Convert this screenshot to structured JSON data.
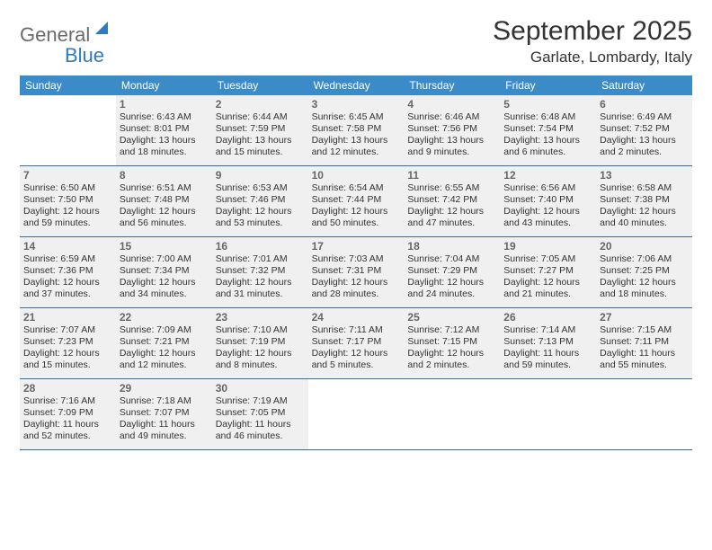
{
  "logo": {
    "word1": "General",
    "word2": "Blue"
  },
  "title": "September 2025",
  "location": "Garlate, Lombardy, Italy",
  "colors": {
    "header_bg": "#3b8bc9",
    "header_text": "#ffffff",
    "cell_bg": "#f0f0f0",
    "row_border": "#2f6fa8",
    "logo_gray": "#6b6b6b",
    "logo_blue": "#2f7bbf"
  },
  "weekdays": [
    "Sunday",
    "Monday",
    "Tuesday",
    "Wednesday",
    "Thursday",
    "Friday",
    "Saturday"
  ],
  "weeks": [
    [
      null,
      {
        "n": "1",
        "sr": "Sunrise: 6:43 AM",
        "ss": "Sunset: 8:01 PM",
        "dl": "Daylight: 13 hours and 18 minutes."
      },
      {
        "n": "2",
        "sr": "Sunrise: 6:44 AM",
        "ss": "Sunset: 7:59 PM",
        "dl": "Daylight: 13 hours and 15 minutes."
      },
      {
        "n": "3",
        "sr": "Sunrise: 6:45 AM",
        "ss": "Sunset: 7:58 PM",
        "dl": "Daylight: 13 hours and 12 minutes."
      },
      {
        "n": "4",
        "sr": "Sunrise: 6:46 AM",
        "ss": "Sunset: 7:56 PM",
        "dl": "Daylight: 13 hours and 9 minutes."
      },
      {
        "n": "5",
        "sr": "Sunrise: 6:48 AM",
        "ss": "Sunset: 7:54 PM",
        "dl": "Daylight: 13 hours and 6 minutes."
      },
      {
        "n": "6",
        "sr": "Sunrise: 6:49 AM",
        "ss": "Sunset: 7:52 PM",
        "dl": "Daylight: 13 hours and 2 minutes."
      }
    ],
    [
      {
        "n": "7",
        "sr": "Sunrise: 6:50 AM",
        "ss": "Sunset: 7:50 PM",
        "dl": "Daylight: 12 hours and 59 minutes."
      },
      {
        "n": "8",
        "sr": "Sunrise: 6:51 AM",
        "ss": "Sunset: 7:48 PM",
        "dl": "Daylight: 12 hours and 56 minutes."
      },
      {
        "n": "9",
        "sr": "Sunrise: 6:53 AM",
        "ss": "Sunset: 7:46 PM",
        "dl": "Daylight: 12 hours and 53 minutes."
      },
      {
        "n": "10",
        "sr": "Sunrise: 6:54 AM",
        "ss": "Sunset: 7:44 PM",
        "dl": "Daylight: 12 hours and 50 minutes."
      },
      {
        "n": "11",
        "sr": "Sunrise: 6:55 AM",
        "ss": "Sunset: 7:42 PM",
        "dl": "Daylight: 12 hours and 47 minutes."
      },
      {
        "n": "12",
        "sr": "Sunrise: 6:56 AM",
        "ss": "Sunset: 7:40 PM",
        "dl": "Daylight: 12 hours and 43 minutes."
      },
      {
        "n": "13",
        "sr": "Sunrise: 6:58 AM",
        "ss": "Sunset: 7:38 PM",
        "dl": "Daylight: 12 hours and 40 minutes."
      }
    ],
    [
      {
        "n": "14",
        "sr": "Sunrise: 6:59 AM",
        "ss": "Sunset: 7:36 PM",
        "dl": "Daylight: 12 hours and 37 minutes."
      },
      {
        "n": "15",
        "sr": "Sunrise: 7:00 AM",
        "ss": "Sunset: 7:34 PM",
        "dl": "Daylight: 12 hours and 34 minutes."
      },
      {
        "n": "16",
        "sr": "Sunrise: 7:01 AM",
        "ss": "Sunset: 7:32 PM",
        "dl": "Daylight: 12 hours and 31 minutes."
      },
      {
        "n": "17",
        "sr": "Sunrise: 7:03 AM",
        "ss": "Sunset: 7:31 PM",
        "dl": "Daylight: 12 hours and 28 minutes."
      },
      {
        "n": "18",
        "sr": "Sunrise: 7:04 AM",
        "ss": "Sunset: 7:29 PM",
        "dl": "Daylight: 12 hours and 24 minutes."
      },
      {
        "n": "19",
        "sr": "Sunrise: 7:05 AM",
        "ss": "Sunset: 7:27 PM",
        "dl": "Daylight: 12 hours and 21 minutes."
      },
      {
        "n": "20",
        "sr": "Sunrise: 7:06 AM",
        "ss": "Sunset: 7:25 PM",
        "dl": "Daylight: 12 hours and 18 minutes."
      }
    ],
    [
      {
        "n": "21",
        "sr": "Sunrise: 7:07 AM",
        "ss": "Sunset: 7:23 PM",
        "dl": "Daylight: 12 hours and 15 minutes."
      },
      {
        "n": "22",
        "sr": "Sunrise: 7:09 AM",
        "ss": "Sunset: 7:21 PM",
        "dl": "Daylight: 12 hours and 12 minutes."
      },
      {
        "n": "23",
        "sr": "Sunrise: 7:10 AM",
        "ss": "Sunset: 7:19 PM",
        "dl": "Daylight: 12 hours and 8 minutes."
      },
      {
        "n": "24",
        "sr": "Sunrise: 7:11 AM",
        "ss": "Sunset: 7:17 PM",
        "dl": "Daylight: 12 hours and 5 minutes."
      },
      {
        "n": "25",
        "sr": "Sunrise: 7:12 AM",
        "ss": "Sunset: 7:15 PM",
        "dl": "Daylight: 12 hours and 2 minutes."
      },
      {
        "n": "26",
        "sr": "Sunrise: 7:14 AM",
        "ss": "Sunset: 7:13 PM",
        "dl": "Daylight: 11 hours and 59 minutes."
      },
      {
        "n": "27",
        "sr": "Sunrise: 7:15 AM",
        "ss": "Sunset: 7:11 PM",
        "dl": "Daylight: 11 hours and 55 minutes."
      }
    ],
    [
      {
        "n": "28",
        "sr": "Sunrise: 7:16 AM",
        "ss": "Sunset: 7:09 PM",
        "dl": "Daylight: 11 hours and 52 minutes."
      },
      {
        "n": "29",
        "sr": "Sunrise: 7:18 AM",
        "ss": "Sunset: 7:07 PM",
        "dl": "Daylight: 11 hours and 49 minutes."
      },
      {
        "n": "30",
        "sr": "Sunrise: 7:19 AM",
        "ss": "Sunset: 7:05 PM",
        "dl": "Daylight: 11 hours and 46 minutes."
      },
      null,
      null,
      null,
      null
    ]
  ]
}
